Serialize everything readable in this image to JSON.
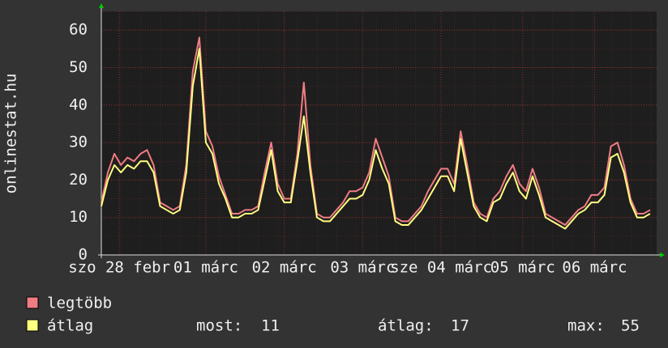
{
  "chart_data": {
    "type": "line",
    "ylabel": "onlinestat.hu",
    "x": [
      0,
      2,
      4,
      6,
      8,
      10,
      12,
      14,
      16,
      18,
      20,
      22,
      24,
      26,
      28,
      30,
      32,
      34,
      36,
      38,
      40,
      42,
      44,
      46,
      48,
      50,
      52,
      54,
      56,
      58,
      60,
      62,
      64,
      66,
      68,
      70,
      72,
      74,
      76,
      78,
      80,
      82,
      84,
      86,
      88,
      90,
      92,
      94,
      96,
      98,
      100,
      102,
      104,
      106,
      108,
      110,
      112,
      114,
      116,
      118,
      120,
      122,
      124,
      126,
      128,
      130,
      132,
      134,
      136,
      138,
      140,
      142,
      144,
      146,
      148,
      150,
      152,
      154,
      156,
      158,
      160,
      162,
      164,
      166,
      168
    ],
    "series": [
      {
        "name": "legtöbb",
        "color": "#f07c84",
        "values": [
          14,
          22,
          27,
          24,
          26,
          25,
          27,
          28,
          24,
          14,
          13,
          12,
          13,
          24,
          49,
          58,
          33,
          29,
          21,
          16,
          11,
          11,
          12,
          12,
          13,
          22,
          30,
          19,
          15,
          15,
          27,
          46,
          24,
          11,
          10,
          10,
          12,
          14,
          17,
          17,
          18,
          22,
          31,
          26,
          21,
          10,
          9,
          9,
          11,
          13,
          17,
          20,
          23,
          23,
          19,
          33,
          24,
          14,
          11,
          10,
          15,
          17,
          21,
          24,
          19,
          17,
          23,
          18,
          11,
          10,
          9,
          8,
          10,
          12,
          13,
          16,
          16,
          18,
          29,
          30,
          24,
          15,
          11,
          11,
          12
        ]
      },
      {
        "name": "átlag",
        "color": "#ffff80",
        "values": [
          13,
          20,
          24,
          22,
          24,
          23,
          25,
          25,
          22,
          13,
          12,
          11,
          12,
          22,
          45,
          55,
          30,
          27,
          19,
          15,
          10,
          10,
          11,
          11,
          12,
          20,
          28,
          17,
          14,
          14,
          25,
          37,
          22,
          10,
          9,
          9,
          11,
          13,
          15,
          15,
          16,
          20,
          28,
          23,
          19,
          9,
          8,
          8,
          10,
          12,
          15,
          18,
          21,
          21,
          17,
          31,
          22,
          13,
          10,
          9,
          14,
          15,
          19,
          22,
          17,
          15,
          21,
          16,
          10,
          9,
          8,
          7,
          9,
          11,
          12,
          14,
          14,
          16,
          26,
          27,
          22,
          14,
          10,
          10,
          11
        ]
      }
    ],
    "xlim": [
      0,
      170
    ],
    "xticks": [
      {
        "value": 5.5,
        "label": "szo 28 febr"
      },
      {
        "value": 32,
        "label": "01 márc"
      },
      {
        "value": 56,
        "label": "02 márc"
      },
      {
        "value": 80,
        "label": "03 márc"
      },
      {
        "value": 104,
        "label": "sze 04 márc"
      },
      {
        "value": 129,
        "label": "05 márc"
      },
      {
        "value": 151,
        "label": "06 márc"
      }
    ],
    "ylim": [
      0,
      65
    ],
    "yticks": [
      0,
      10,
      20,
      30,
      40,
      50,
      60
    ],
    "grid": true,
    "stats": [
      {
        "label": "most:",
        "value": 11
      },
      {
        "label": "átlag:",
        "value": 17
      },
      {
        "label": "max:",
        "value": 55
      }
    ]
  }
}
